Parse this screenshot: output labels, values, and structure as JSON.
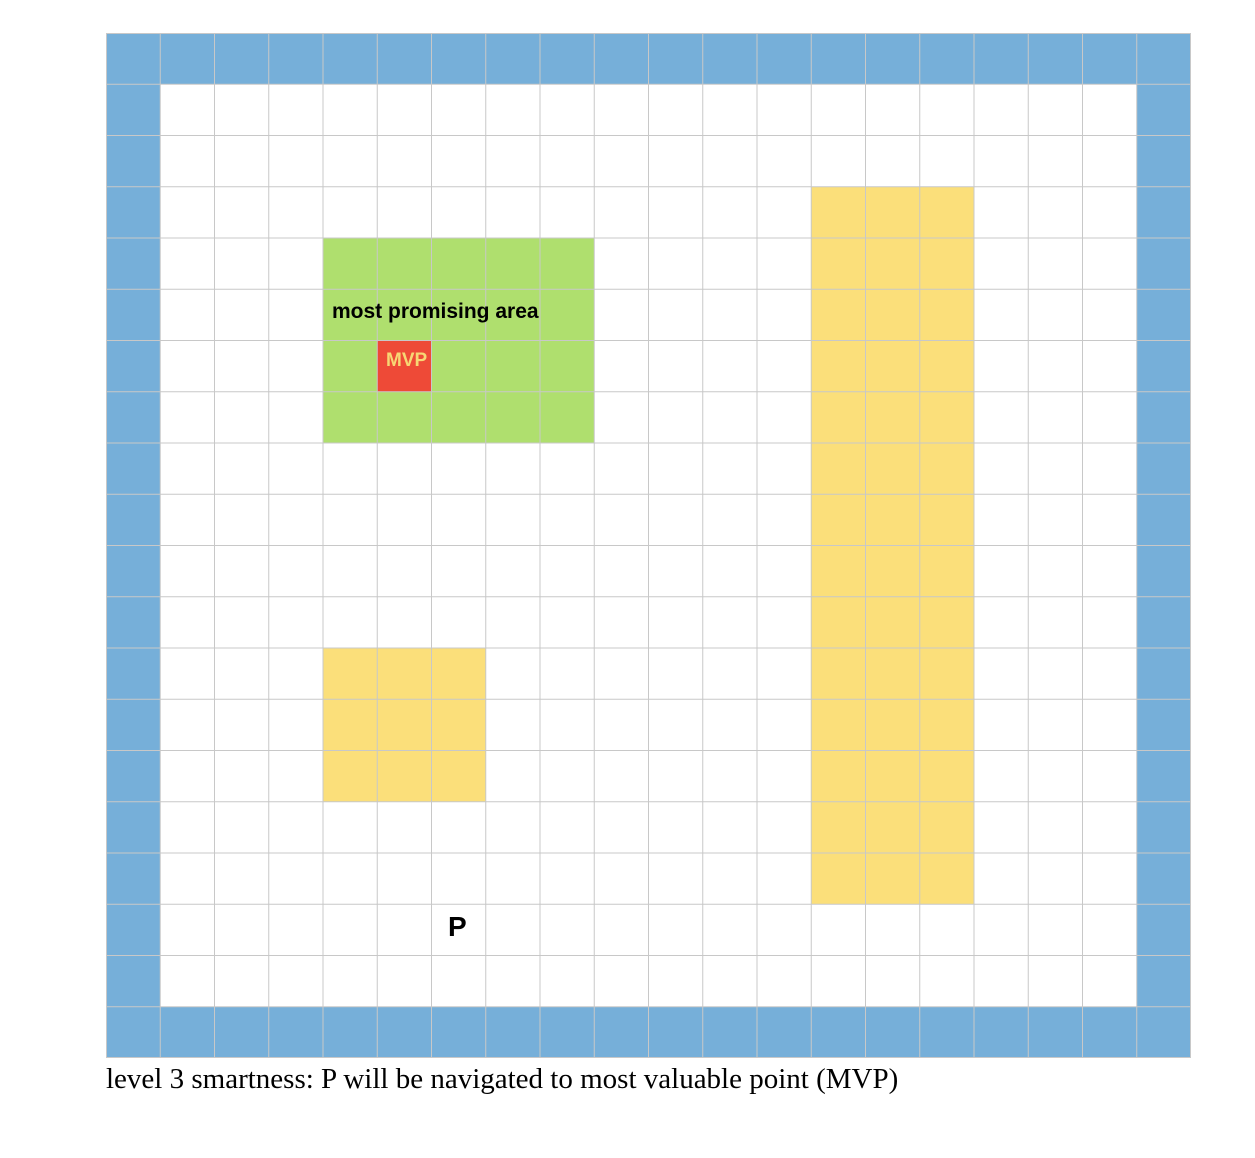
{
  "grid": {
    "cols": 20,
    "rows": 20,
    "colors": {
      "wall": "#76afd9",
      "empty": "#ffffff",
      "gridline": "#c8c8c8",
      "promising_area": "#afdf6e",
      "value_zone": "#fbdf7a",
      "mvp_cell": "#ee4a37",
      "mvp_text": "#f7d774"
    },
    "regions": [
      {
        "name": "promising-area",
        "type": "promising_area",
        "col": 4,
        "row": 4,
        "cols": 5,
        "rows": 4
      },
      {
        "name": "mvp-cell",
        "type": "mvp_cell",
        "col": 5,
        "row": 6,
        "cols": 1,
        "rows": 1
      },
      {
        "name": "value-zone-tall",
        "type": "value_zone",
        "col": 13,
        "row": 3,
        "cols": 3,
        "rows": 14
      },
      {
        "name": "value-zone-small",
        "type": "value_zone",
        "col": 4,
        "row": 12,
        "cols": 3,
        "rows": 3
      }
    ]
  },
  "labels": {
    "promising_area": "most promising area",
    "mvp": "MVP",
    "player": "P"
  },
  "caption": "level 3 smartness: P will be navigated to most valuable point (MVP)"
}
